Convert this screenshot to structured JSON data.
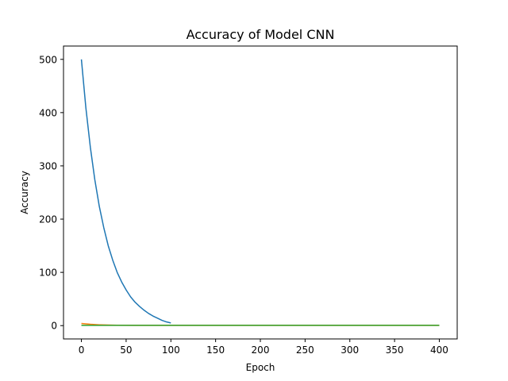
{
  "chart_data": {
    "type": "line",
    "title": "Accuracy of Model CNN",
    "xlabel": "Epoch",
    "ylabel": "Accuracy",
    "xlim": [
      -20,
      420
    ],
    "ylim": [
      -25,
      525
    ],
    "xticks": [
      0,
      50,
      100,
      150,
      200,
      250,
      300,
      350,
      400
    ],
    "yticks": [
      0,
      100,
      200,
      300,
      400,
      500
    ],
    "grid": false,
    "legend": "none",
    "series": [
      {
        "color": "#1f77b4",
        "x": [
          0,
          5,
          10,
          15,
          20,
          25,
          30,
          35,
          40,
          45,
          50,
          55,
          60,
          65,
          70,
          75,
          80,
          85,
          90,
          95,
          100
        ],
        "y": [
          500,
          409,
          335,
          274,
          224,
          184,
          150,
          123,
          100,
          82,
          67,
          54,
          44,
          36,
          29,
          23,
          18,
          14,
          10,
          7,
          5
        ]
      },
      {
        "color": "#ff7f0e",
        "x": [
          0,
          10,
          20,
          30,
          40,
          60,
          100,
          200,
          300,
          400
        ],
        "y": [
          4,
          2.5,
          1.5,
          1,
          0.8,
          0.6,
          0.5,
          0.5,
          0.5,
          0.5
        ]
      },
      {
        "color": "#2ca02c",
        "x": [
          0,
          10,
          20,
          30,
          50,
          100,
          200,
          300,
          400
        ],
        "y": [
          0.5,
          0.6,
          0.6,
          0.6,
          0.6,
          0.6,
          0.6,
          0.6,
          0.6
        ]
      }
    ]
  }
}
